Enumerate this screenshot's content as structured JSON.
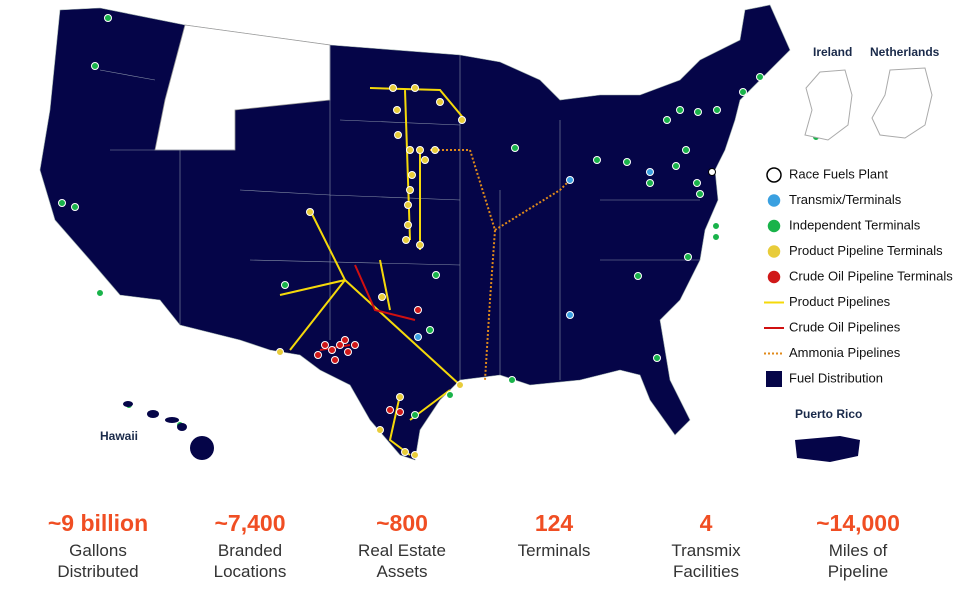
{
  "insets": {
    "ireland": "Ireland",
    "netherlands": "Netherlands",
    "hawaii": "Hawaii",
    "puerto_rico": "Puerto Rico"
  },
  "legend": [
    "Race Fuels Plant",
    "Transmix/Terminals",
    "Independent Terminals",
    "Product Pipeline Terminals",
    "Crude Oil Pipeline Terminals",
    "Product Pipelines",
    "Crude Oil Pipelines",
    "Ammonia Pipelines",
    "Fuel Distribution"
  ],
  "stats": [
    {
      "value": "~9 billion",
      "label": "Gallons Distributed"
    },
    {
      "value": "~7,400",
      "label": "Branded Locations"
    },
    {
      "value": "~800",
      "label": "Real Estate Assets"
    },
    {
      "value": "124",
      "label": "Terminals"
    },
    {
      "value": "4",
      "label": "Transmix Facilities"
    },
    {
      "value": "~14,000",
      "label": "Miles of Pipeline"
    }
  ]
}
